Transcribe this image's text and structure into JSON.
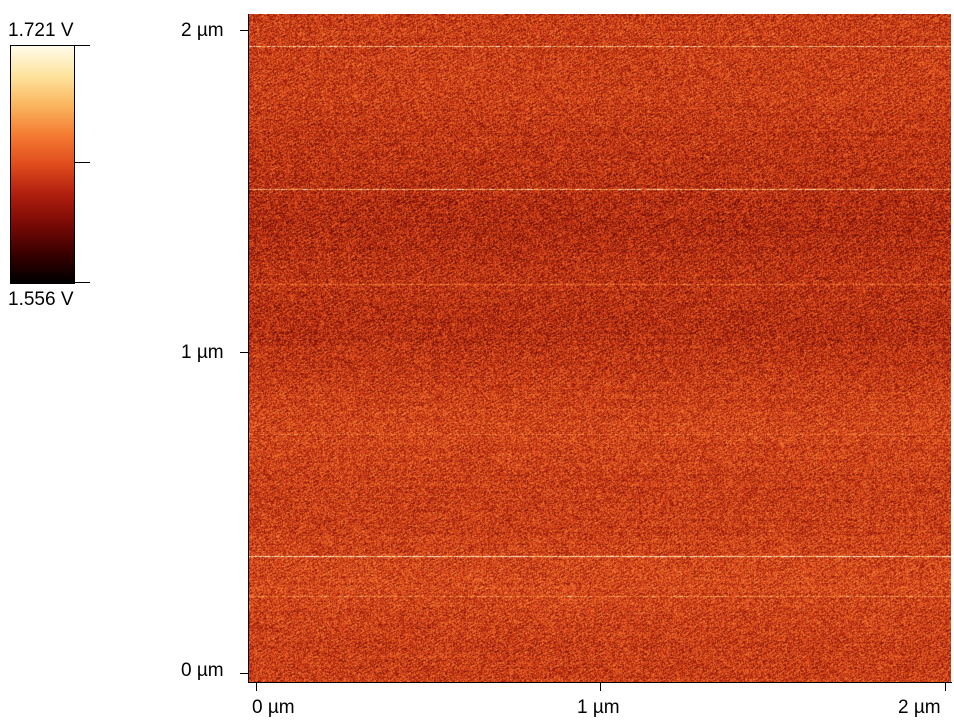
{
  "colorbar": {
    "max_label": "1.721 V",
    "min_label": "1.556 V",
    "gradient_colors": [
      "#000000",
      "#3a0000",
      "#7a0a05",
      "#b01e0e",
      "#e04c1c",
      "#f57b33",
      "#fbb55e",
      "#fde49d",
      "#fffbea"
    ]
  },
  "y_axis": {
    "ticks": [
      "2 µm",
      "1 µm",
      "0 µm"
    ]
  },
  "x_axis": {
    "ticks": [
      "0 µm",
      "1 µm",
      "2 µm"
    ]
  },
  "image": {
    "base_color": "#c03a16",
    "dark_bands_color": "#8a1a0c",
    "bright_lines_color": "#ffe6b0"
  }
}
